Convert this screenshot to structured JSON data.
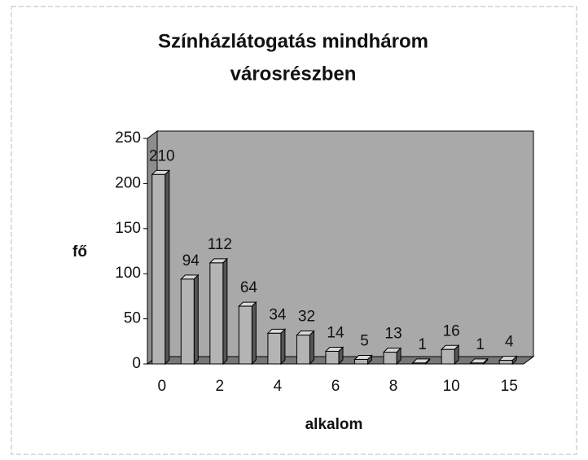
{
  "chart_data": {
    "type": "bar",
    "title": "Színházlátogatás mindhárom városrészben",
    "title_lines": [
      "Színházlátogatás mindhárom",
      "városrészben"
    ],
    "categories": [
      "0",
      null,
      "2",
      null,
      "4",
      null,
      "6",
      null,
      "8",
      null,
      "10",
      null,
      "15"
    ],
    "values": [
      210,
      94,
      112,
      64,
      34,
      32,
      14,
      5,
      13,
      1,
      16,
      1,
      4
    ],
    "color": "#b4b4b4",
    "ylim": [
      0,
      250
    ],
    "yticks": [
      0,
      50,
      100,
      150,
      200,
      250
    ],
    "y_label": "fő",
    "x_label": "alkalom"
  }
}
